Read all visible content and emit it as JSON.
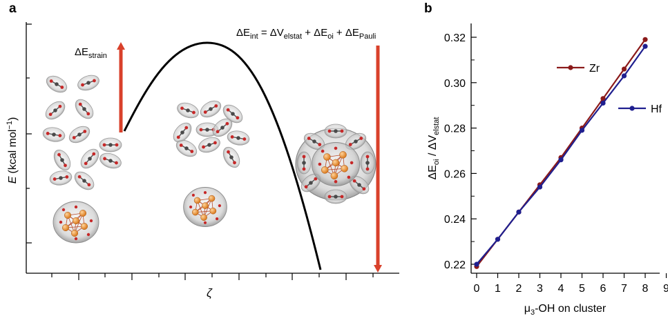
{
  "panel_a": {
    "label": "a",
    "ylabel": {
      "var": "E",
      "text": "(kcal mol",
      "sup": "−1",
      "close": ")"
    },
    "xlabel": "ζ",
    "strain_label": {
      "delta": "ΔE",
      "sub": "strain"
    },
    "int_label": {
      "t1": "ΔE",
      "s1": "int",
      "t2": " = ΔV",
      "s2": "elstat",
      "t3": " + ΔE",
      "s3": "oi",
      "t4": " + ΔE",
      "s4": "Pauli"
    },
    "arrow_color": "#d9412b",
    "curve_color": "#000000",
    "cluster_metal_color": "#e8902a",
    "cluster_shell_color": "#c8c8c8"
  },
  "chart_data": [
    {
      "type": "line",
      "title": "",
      "xlabel": "μ3-OH on cluster",
      "ylabel": "ΔEoi / ΔVelstat",
      "x": [
        0,
        1,
        2,
        3,
        4,
        5,
        6,
        7,
        8
      ],
      "xticks": [
        "0",
        "1",
        "2",
        "3",
        "4",
        "5",
        "6",
        "7",
        "8",
        "9"
      ],
      "xlim": [
        0,
        9
      ],
      "yticks": [
        "0.22",
        "0.24",
        "0.26",
        "0.28",
        "0.30",
        "0.32"
      ],
      "ylim": [
        0.215,
        0.325
      ],
      "grid": false,
      "series": [
        {
          "name": "Zr",
          "color": "#8b1a1a",
          "values": [
            0.219,
            0.231,
            0.243,
            0.255,
            0.267,
            0.28,
            0.293,
            0.306,
            0.319
          ]
        },
        {
          "name": "Hf",
          "color": "#1f1f8f",
          "values": [
            0.22,
            0.231,
            0.243,
            0.254,
            0.266,
            0.279,
            0.291,
            0.303,
            0.316
          ]
        }
      ]
    }
  ],
  "panel_b": {
    "label": "b",
    "ylabel": {
      "d1": "ΔE",
      "s1": "oi",
      "mid": " / ΔV",
      "s2": "elstat"
    },
    "xlabel": {
      "pre": "μ",
      "sub": "3",
      "post": "-OH on cluster"
    }
  }
}
